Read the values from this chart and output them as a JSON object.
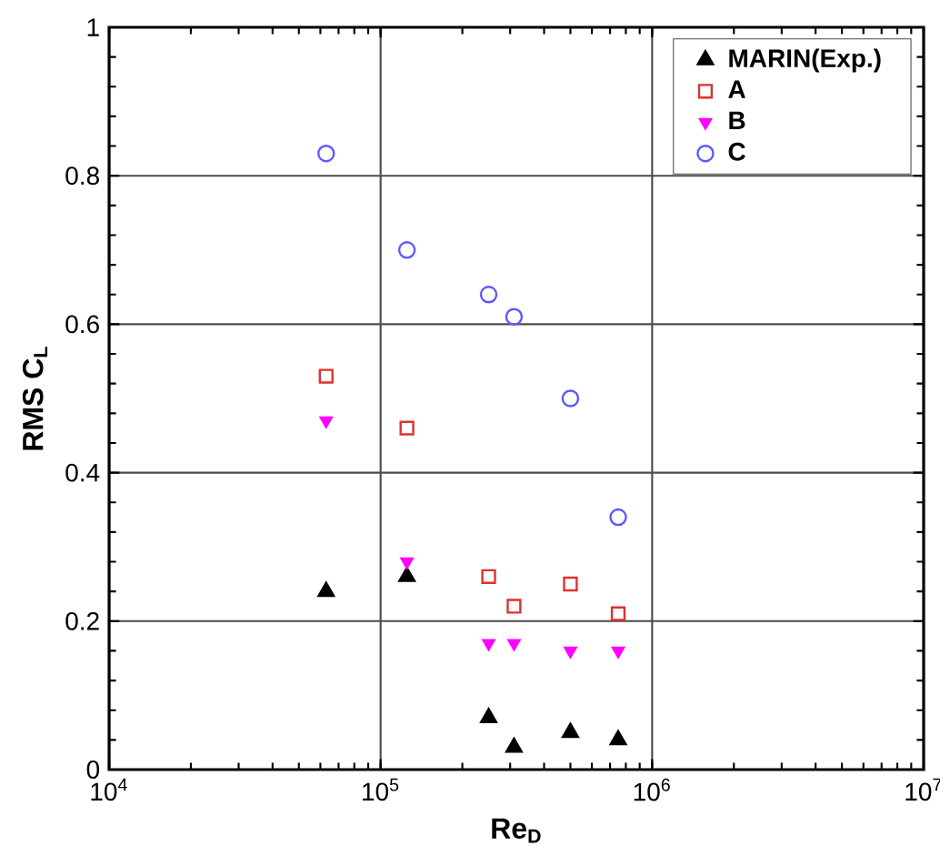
{
  "chart_data": {
    "type": "scatter",
    "xlabel": "Re$_{D}$",
    "ylabel": "RMS C$_{L}$",
    "log": "x",
    "xlim": [
      10000,
      10000000
    ],
    "ylim": [
      0,
      1
    ],
    "xticks": [
      {
        "value": 10000,
        "label": "10$^{4}$"
      },
      {
        "value": 100000,
        "label": "10$^{5}$"
      },
      {
        "value": 1000000,
        "label": "10$^{6}$"
      },
      {
        "value": 10000000,
        "label": "10$^{7}$"
      }
    ],
    "yticks": [
      0,
      0.2,
      0.4,
      0.6,
      0.8,
      1
    ],
    "grid": true,
    "legend": "top right",
    "x": [
      63000,
      125000,
      250000,
      310000,
      500000,
      750000
    ],
    "series": [
      {
        "name": "MARIN(Exp.)",
        "color": "#000000",
        "marker": "triangle",
        "values": [
          0.24,
          0.26,
          0.07,
          0.03,
          0.05,
          0.04
        ]
      },
      {
        "name": "A",
        "color": "#e03030",
        "marker": "square",
        "values": [
          0.53,
          0.46,
          0.26,
          0.22,
          0.25,
          0.21
        ]
      },
      {
        "name": "B",
        "color": "#ff00ff",
        "marker": "triangle-down",
        "values": [
          0.47,
          0.28,
          0.17,
          0.17,
          0.16,
          0.16
        ]
      },
      {
        "name": "C",
        "color": "#5a5aff",
        "marker": "circle",
        "values": [
          0.83,
          0.7,
          0.64,
          0.61,
          0.5,
          0.34
        ]
      }
    ]
  }
}
